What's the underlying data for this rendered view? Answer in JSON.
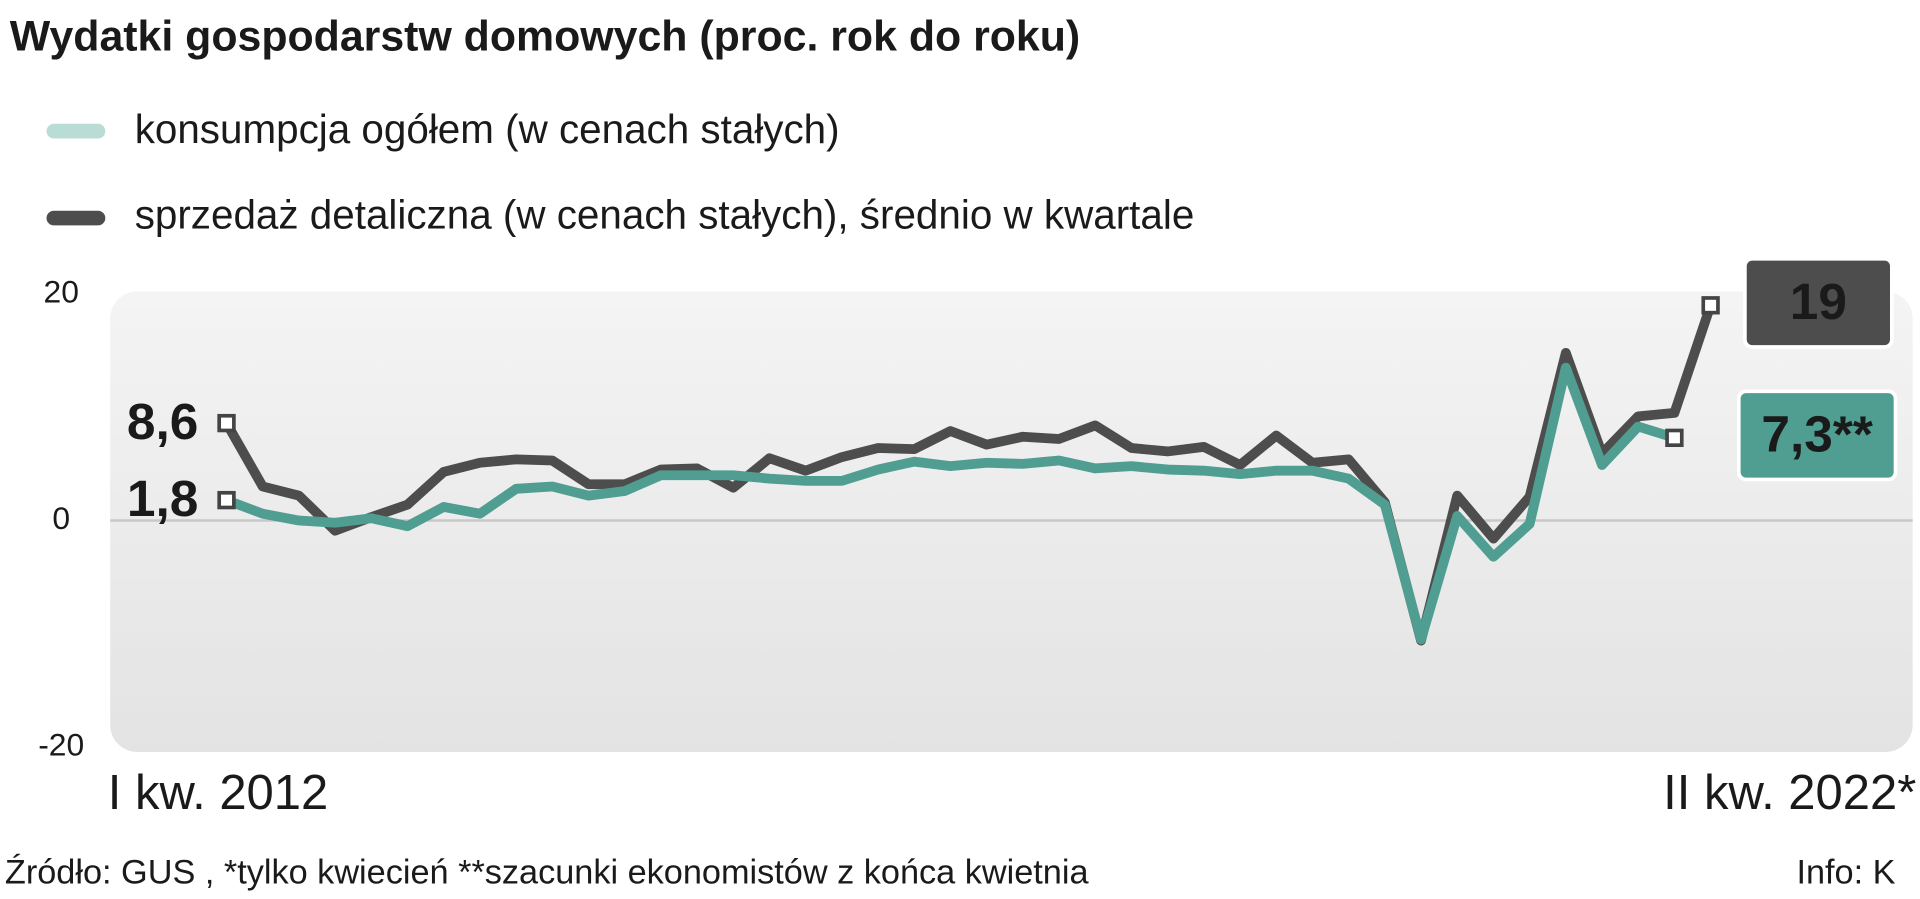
{
  "chart_data": {
    "type": "line",
    "title": "Wydatki gospodarstw domowych (proc. rok do roku)",
    "categories": [
      "I kw. 2012",
      null,
      null,
      null,
      null,
      null,
      null,
      null,
      null,
      null,
      null,
      null,
      null,
      null,
      null,
      null,
      null,
      null,
      null,
      null,
      null,
      null,
      null,
      null,
      null,
      null,
      null,
      null,
      null,
      null,
      null,
      null,
      null,
      null,
      null,
      null,
      null,
      null,
      null,
      null,
      null,
      "II kw. 2022*"
    ],
    "series": [
      {
        "name": "sprzedaż detaliczna (w cenach stałych), średnio w kwartale",
        "color": "#4d4d4d",
        "values": [
          8.6,
          3.0,
          2.2,
          -0.9,
          0.3,
          1.4,
          4.3,
          5.1,
          5.4,
          5.3,
          3.2,
          3.2,
          4.5,
          4.6,
          2.9,
          5.5,
          4.4,
          5.6,
          6.4,
          6.3,
          7.9,
          6.7,
          7.4,
          7.2,
          8.4,
          6.4,
          6.1,
          6.5,
          4.9,
          7.5,
          5.1,
          5.4,
          1.6,
          -10.6,
          2.2,
          -1.6,
          2.1,
          14.8,
          5.9,
          9.2,
          9.5,
          19
        ],
        "value_labels": [
          "8,6",
          null,
          null,
          null,
          null,
          null,
          null,
          null,
          null,
          null,
          null,
          null,
          null,
          null,
          null,
          null,
          null,
          null,
          null,
          null,
          null,
          null,
          null,
          null,
          null,
          null,
          null,
          null,
          null,
          null,
          null,
          null,
          null,
          null,
          null,
          null,
          null,
          null,
          null,
          null,
          null,
          "19"
        ]
      },
      {
        "name": "konsumpcja ogółem (w cenach stałych)",
        "color": "#4f9e91",
        "legend_color": "#b9dcd5",
        "values": [
          1.8,
          0.6,
          0,
          -0.2,
          0.2,
          -0.5,
          1.2,
          0.6,
          2.8,
          3.0,
          2.2,
          2.6,
          4.0,
          4.0,
          4.0,
          3.7,
          3.5,
          3.5,
          4.5,
          5.2,
          4.8,
          5.1,
          5.0,
          5.3,
          4.6,
          4.8,
          4.5,
          4.4,
          4.1,
          4.4,
          4.4,
          3.7,
          1.4,
          -10.5,
          0.4,
          -3.2,
          -0.3,
          13.5,
          4.9,
          8.3,
          7.3,
          null
        ],
        "value_labels": [
          "1,8",
          null,
          null,
          null,
          null,
          null,
          null,
          null,
          null,
          null,
          null,
          null,
          null,
          null,
          null,
          null,
          null,
          null,
          null,
          null,
          null,
          null,
          null,
          null,
          null,
          null,
          null,
          null,
          null,
          null,
          null,
          null,
          null,
          null,
          null,
          null,
          null,
          null,
          null,
          null,
          "7,3**",
          null
        ]
      }
    ],
    "ylim": [
      -20,
      20
    ],
    "yticks": [
      20,
      0,
      -20
    ],
    "source": "Źródło: GUS , *tylko kwiecień **szacunki ekonomistów z końca kwietnia",
    "credit": "Info: K"
  }
}
